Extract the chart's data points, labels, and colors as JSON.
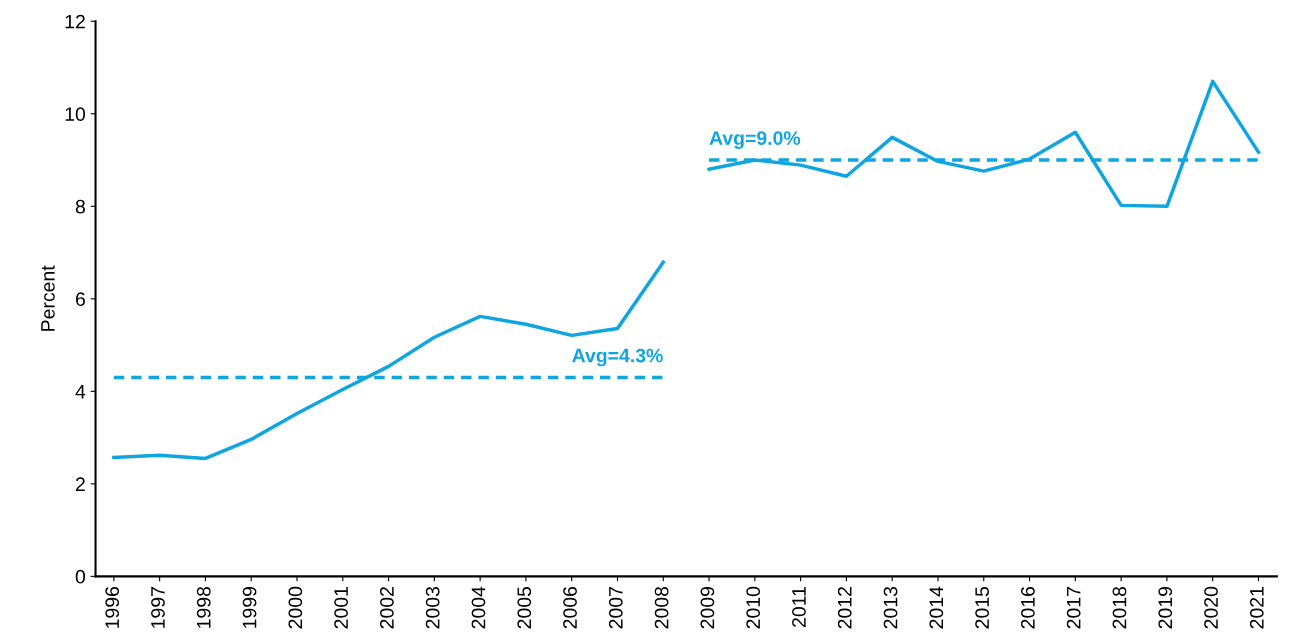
{
  "chart_data": {
    "type": "line",
    "ylabel": "Percent",
    "xlim": [
      1995.6,
      2021.4
    ],
    "xticks": [
      1996,
      1997,
      1998,
      1999,
      2000,
      2001,
      2002,
      2003,
      2004,
      2005,
      2006,
      2007,
      2008,
      2009,
      2010,
      2011,
      2012,
      2013,
      2014,
      2015,
      2016,
      2017,
      2018,
      2019,
      2020,
      2021
    ],
    "ylim": [
      0,
      12
    ],
    "yticks": [
      0,
      2,
      4,
      6,
      8,
      10,
      12
    ],
    "grid": false,
    "legend": false,
    "series": [
      {
        "color": "#0ea5e0",
        "line_style": "solid",
        "x": [
          1996,
          1997,
          1998,
          1999,
          2000,
          2001,
          2002,
          2003,
          2004,
          2005,
          2006,
          2007,
          2008
        ],
        "values": [
          2.57,
          2.62,
          2.55,
          2.96,
          3.52,
          4.04,
          4.54,
          5.17,
          5.62,
          5.45,
          5.21,
          5.36,
          6.79
        ]
      },
      {
        "color": "#0ea5e0",
        "line_style": "solid",
        "x": [
          2009,
          2010,
          2011,
          2012,
          2013,
          2014,
          2015,
          2016,
          2017,
          2018,
          2019,
          2020,
          2021
        ],
        "values": [
          8.8,
          9.0,
          8.89,
          8.65,
          9.49,
          8.97,
          8.76,
          9.02,
          9.6,
          8.02,
          8.0,
          10.7,
          9.17
        ]
      },
      {
        "color": "#0ea5e0",
        "line_style": "dashed",
        "x": [
          1996,
          2008
        ],
        "values": [
          4.3,
          4.3
        ]
      },
      {
        "color": "#0ea5e0",
        "line_style": "dashed",
        "x": [
          2009,
          2021
        ],
        "values": [
          9.0,
          9.0
        ]
      }
    ],
    "annotations": [
      {
        "text": "Avg=4.3%",
        "x": 2007,
        "y": 4.3
      },
      {
        "text": "Avg=9.0%",
        "x": 2010,
        "y": 9.0
      }
    ]
  }
}
